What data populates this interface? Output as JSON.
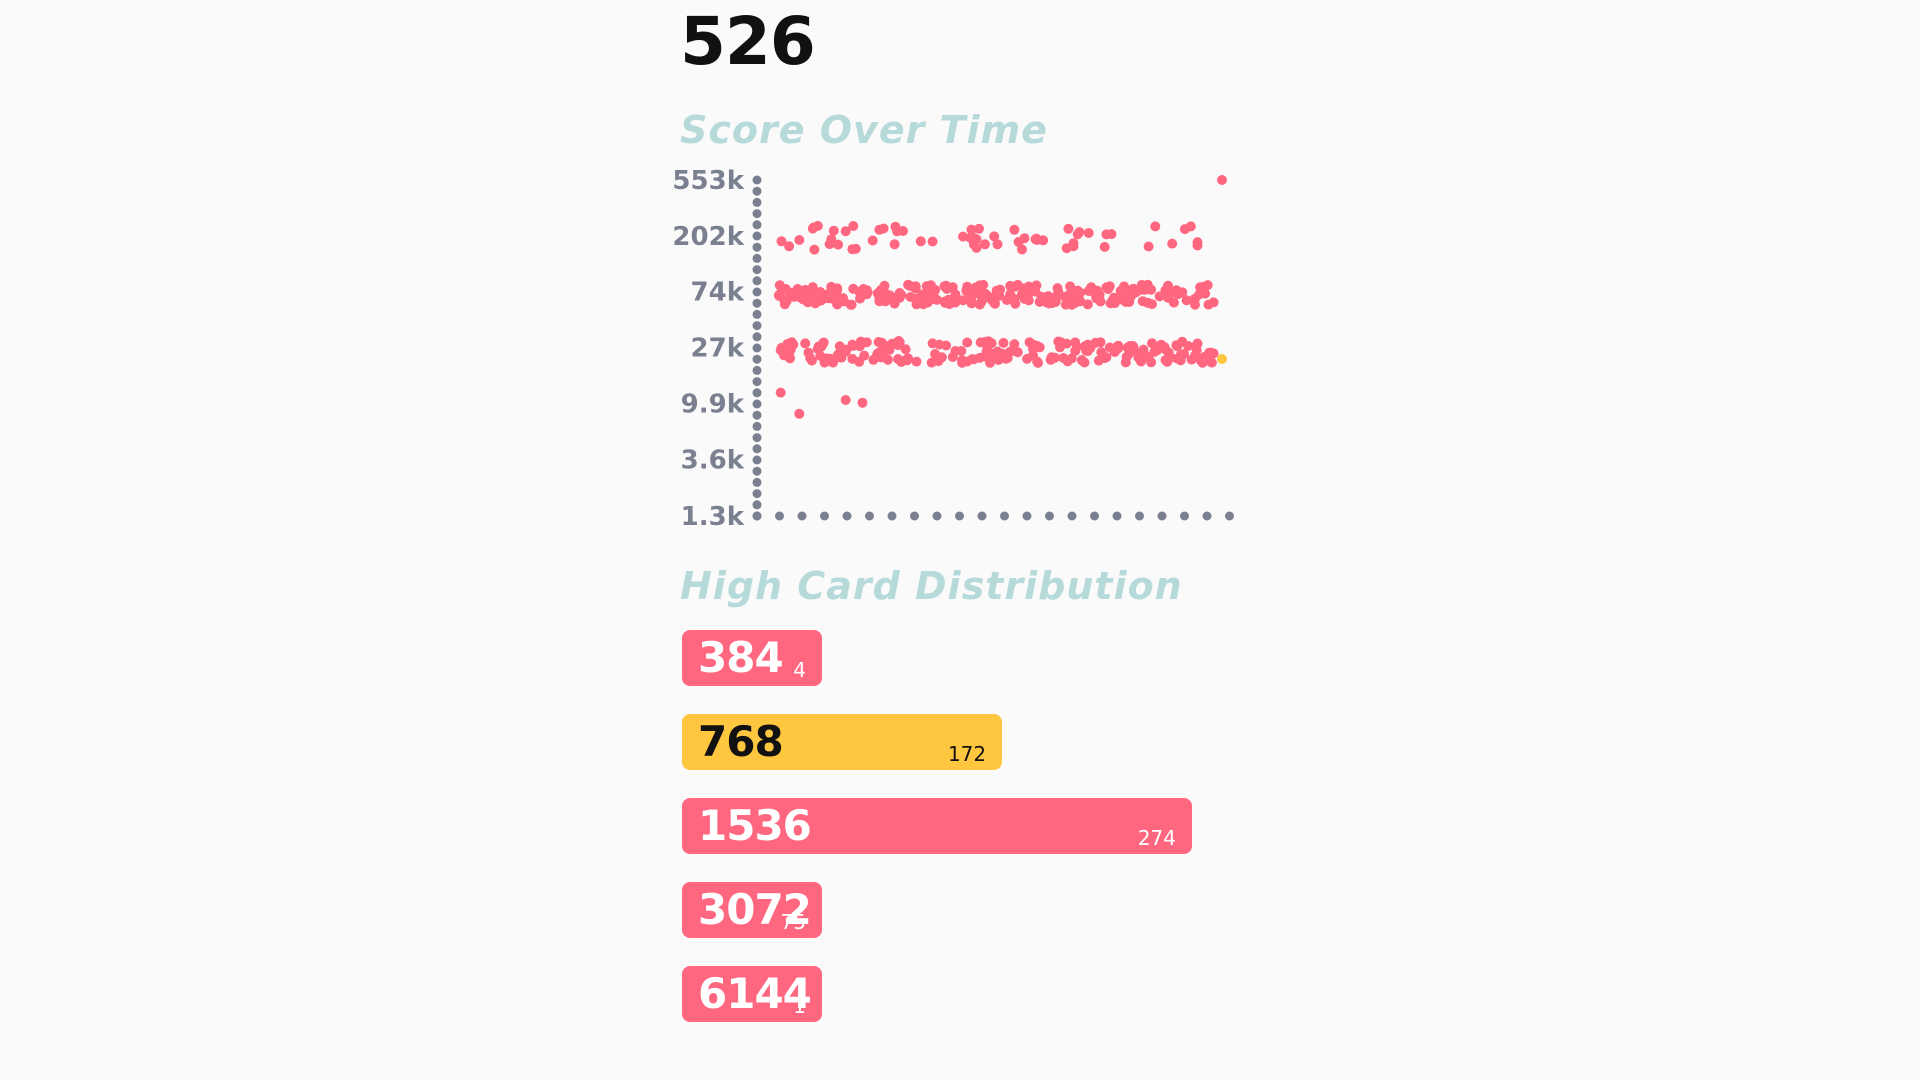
{
  "games": "526",
  "score_section": {
    "title": "Score Over Time"
  },
  "distribution_section": {
    "title": "High Card Distribution"
  },
  "colors": {
    "background": "#fafafa",
    "pink": "#ff6680",
    "yellow": "#ffc640",
    "axis": "#7a8090",
    "title": "#b6d9d9"
  },
  "chart_data": [
    {
      "type": "scatter",
      "title": "Score Over Time",
      "xlabel": "",
      "ylabel": "",
      "y_scale": "log",
      "y_ticks": [
        "553k",
        "202k",
        "74k",
        "27k",
        "9.9k",
        "3.6k",
        "1.3k"
      ],
      "y_tick_values": [
        553000,
        202000,
        74000,
        27000,
        9900,
        3600,
        1300
      ],
      "ylim": [
        1300,
        553000
      ],
      "x": "game index 1-526",
      "grid": false,
      "point_groups": [
        {
          "band": "~195k",
          "approx_count": 60,
          "color": "#ff6680"
        },
        {
          "band": "~70k",
          "approx_count": 250,
          "color": "#ff6680"
        },
        {
          "band": "~25k",
          "approx_count": 200,
          "color": "#ff6680"
        }
      ],
      "notable_points": [
        {
          "x": 526,
          "y": 553000,
          "color": "#ff6680"
        },
        {
          "x": 526,
          "y": 22000,
          "color": "#ffc640"
        },
        {
          "x": 3,
          "y": 12000,
          "color": "#ff6680"
        },
        {
          "x": 25,
          "y": 8200,
          "color": "#ff6680"
        },
        {
          "x": 80,
          "y": 10500,
          "color": "#ff6680"
        },
        {
          "x": 100,
          "y": 10000,
          "color": "#ff6680"
        }
      ]
    },
    {
      "type": "bar",
      "title": "High Card Distribution",
      "orientation": "horizontal",
      "categories": [
        "384",
        "768",
        "1536",
        "3072",
        "6144"
      ],
      "values": [
        4,
        172,
        274,
        75,
        1
      ],
      "highlight_category": "768",
      "colors": [
        "#ff6680",
        "#ffc640",
        "#ff6680",
        "#ff6680",
        "#ff6680"
      ]
    }
  ]
}
